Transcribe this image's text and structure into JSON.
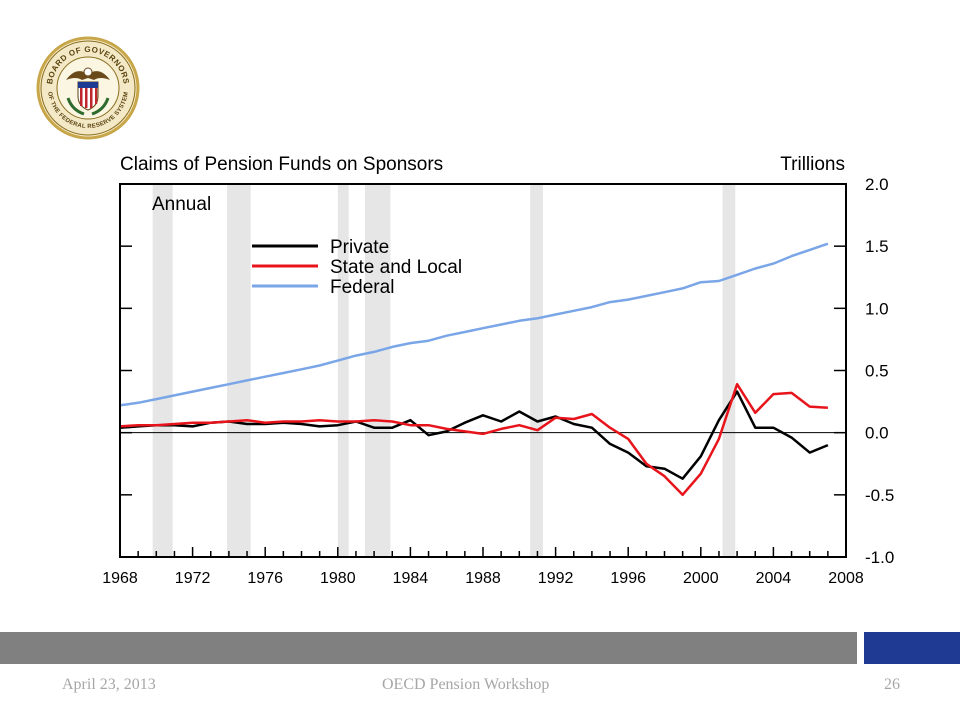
{
  "seal": {
    "text_top": "BOARD OF GOVERNORS",
    "text_bottom": "OF THE FEDERAL RESERVE SYSTEM"
  },
  "footer": {
    "date": "April 23, 2013",
    "title": "OECD Pension Workshop",
    "page": "26"
  },
  "colors": {
    "private": "#000000",
    "state_local": "#e8141b",
    "federal": "#7aa6e8",
    "recession": "#e6e6e6",
    "footer_bar": "#808080",
    "footer_accent": "#1f3a93"
  },
  "chart_data": {
    "type": "line",
    "title": "Claims of Pension Funds on Sponsors",
    "unit_label": "Trillions",
    "subtitle": "Annual",
    "xlim": [
      1968,
      2008
    ],
    "ylim": [
      -1.0,
      2.0
    ],
    "x_ticks": [
      "1968",
      "1972",
      "1976",
      "1980",
      "1984",
      "1988",
      "1992",
      "1996",
      "2000",
      "2004",
      "2008"
    ],
    "y_ticks": [
      "2.0",
      "1.5",
      "1.0",
      "0.5",
      "0.0",
      "-0.5",
      "-1.0"
    ],
    "y_axis_side": "right",
    "zero_line": true,
    "recessions": [
      [
        1969.8,
        1970.9
      ],
      [
        1973.9,
        1975.2
      ],
      [
        1980.0,
        1980.6
      ],
      [
        1981.5,
        1982.9
      ],
      [
        1990.6,
        1991.3
      ],
      [
        2001.2,
        2001.9
      ]
    ],
    "legend": [
      "Private",
      "State and Local",
      "Federal"
    ],
    "x": [
      1968,
      1969,
      1970,
      1971,
      1972,
      1973,
      1974,
      1975,
      1976,
      1977,
      1978,
      1979,
      1980,
      1981,
      1982,
      1983,
      1984,
      1985,
      1986,
      1987,
      1988,
      1989,
      1990,
      1991,
      1992,
      1993,
      1994,
      1995,
      1996,
      1997,
      1998,
      1999,
      2000,
      2001,
      2002,
      2003,
      2004,
      2005,
      2006,
      2007
    ],
    "series": [
      {
        "name": "Private",
        "values": [
          0.04,
          0.05,
          0.06,
          0.06,
          0.05,
          0.08,
          0.09,
          0.07,
          0.07,
          0.08,
          0.07,
          0.05,
          0.06,
          0.09,
          0.04,
          0.04,
          0.1,
          -0.02,
          0.01,
          0.08,
          0.14,
          0.09,
          0.17,
          0.09,
          0.13,
          0.07,
          0.04,
          -0.09,
          -0.16,
          -0.27,
          -0.29,
          -0.37,
          -0.19,
          0.1,
          0.33,
          0.04,
          0.04,
          -0.04,
          -0.16,
          -0.1
        ]
      },
      {
        "name": "State and Local",
        "values": [
          0.05,
          0.06,
          0.06,
          0.07,
          0.08,
          0.08,
          0.09,
          0.1,
          0.08,
          0.09,
          0.09,
          0.1,
          0.09,
          0.09,
          0.1,
          0.09,
          0.06,
          0.06,
          0.03,
          0.01,
          -0.01,
          0.03,
          0.06,
          0.02,
          0.12,
          0.11,
          0.15,
          0.04,
          -0.05,
          -0.25,
          -0.35,
          -0.5,
          -0.33,
          -0.05,
          0.39,
          0.16,
          0.31,
          0.32,
          0.21,
          0.2
        ]
      },
      {
        "name": "Federal",
        "values": [
          0.22,
          0.24,
          0.27,
          0.3,
          0.33,
          0.36,
          0.39,
          0.42,
          0.45,
          0.48,
          0.51,
          0.54,
          0.58,
          0.62,
          0.65,
          0.69,
          0.72,
          0.74,
          0.78,
          0.81,
          0.84,
          0.87,
          0.9,
          0.92,
          0.95,
          0.98,
          1.01,
          1.05,
          1.07,
          1.1,
          1.13,
          1.16,
          1.21,
          1.22,
          1.27,
          1.32,
          1.36,
          1.42,
          1.47,
          1.52
        ]
      }
    ]
  }
}
